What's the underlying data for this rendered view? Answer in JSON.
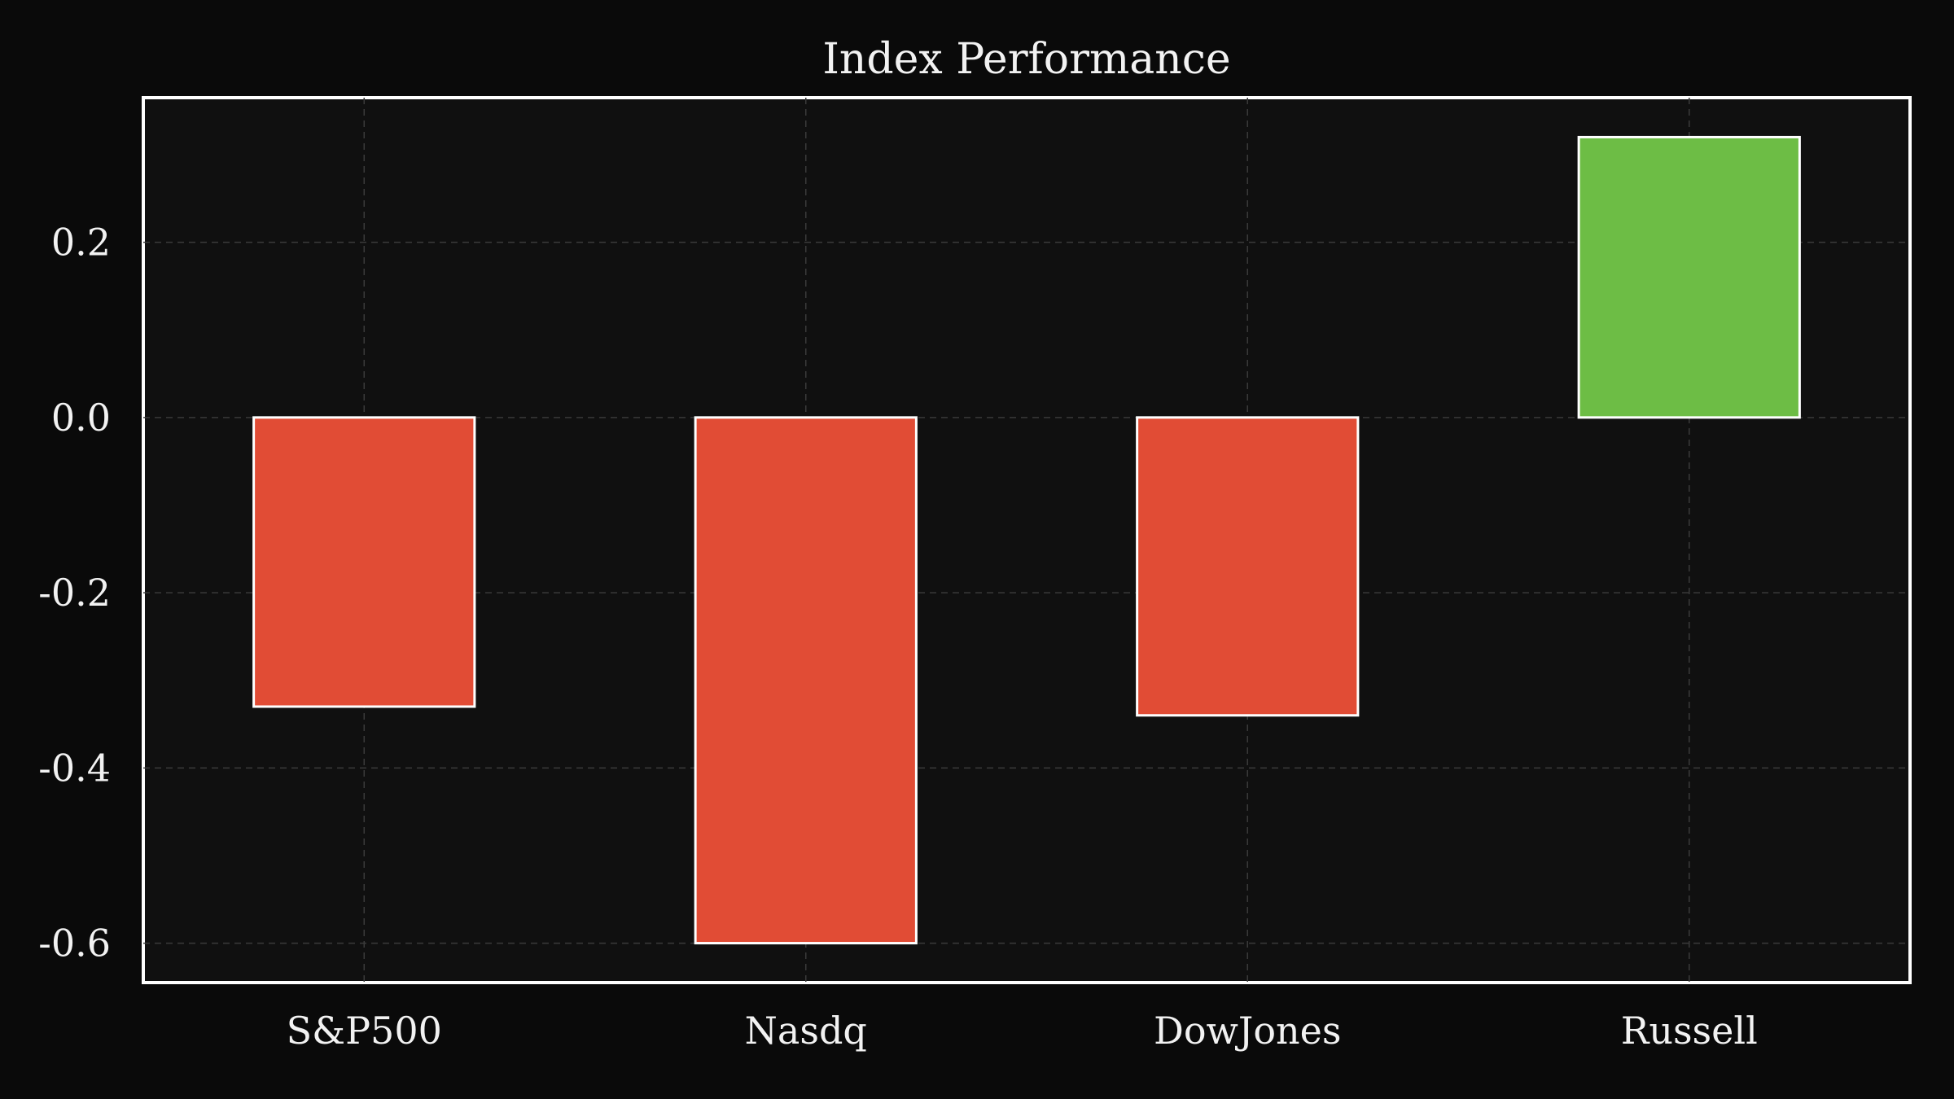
{
  "chart_data": {
    "type": "bar",
    "title": "Index Performance",
    "xlabel": "",
    "ylabel": "",
    "categories": [
      "S&P500",
      "Nasdq",
      "DowJones",
      "Russell"
    ],
    "values": [
      -0.33,
      -0.6,
      -0.34,
      0.32
    ],
    "ylim": [
      -0.645,
      0.365
    ],
    "yticks": [
      0.2,
      0.0,
      -0.2,
      -0.4,
      -0.6
    ],
    "ytick_labels": [
      "0.2",
      "0.0",
      "-0.2",
      "-0.4",
      "-0.6"
    ],
    "grid": true,
    "colors": {
      "positive": "#6dbd45",
      "negative": "#e14c35",
      "background": "#0a0a0a",
      "plot_background": "#101010",
      "grid": "#3a3a3a",
      "text": "#f2f2f2",
      "frame": "#ffffff"
    }
  }
}
